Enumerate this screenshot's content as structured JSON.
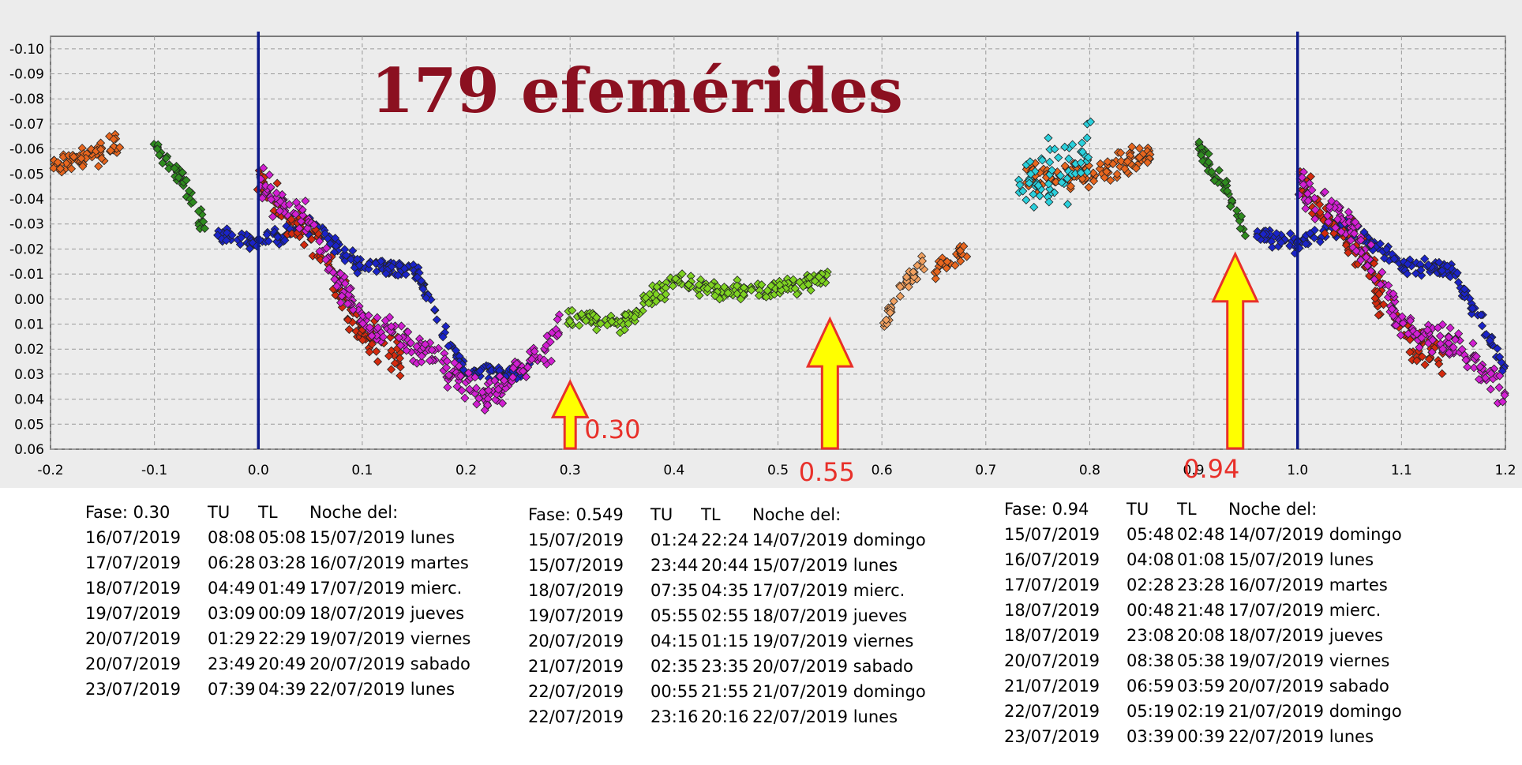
{
  "chart_data": {
    "type": "scatter",
    "title": "179 efemérides",
    "xlabel": "",
    "ylabel": "",
    "xlim": [
      -0.2,
      1.2
    ],
    "ylim": [
      -0.105,
      0.06
    ],
    "y_inverted": true,
    "grid": true,
    "legend": "none",
    "x_ticks": [
      "-0.2",
      "-0.1",
      "0.0",
      "0.1",
      "0.2",
      "0.3",
      "0.4",
      "0.5",
      "0.6",
      "0.7",
      "0.8",
      "0.9",
      "1.0",
      "1.1",
      "1.2"
    ],
    "y_ticks": [
      "-0.10",
      "-0.09",
      "-0.08",
      "-0.07",
      "-0.06",
      "-0.05",
      "-0.04",
      "-0.03",
      "-0.02",
      "-0.01",
      "0.00",
      "0.01",
      "0.02",
      "0.03",
      "0.04",
      "0.05",
      "0.06"
    ],
    "vlines": [
      0.0,
      1.0
    ],
    "colors": {
      "orange": "#e8661e",
      "green": "#2e8b1e",
      "blue": "#1a23c8",
      "red": "#d42a0e",
      "magenta": "#d21fd2",
      "lightgreen": "#7ed321",
      "cyan": "#2ad0dc",
      "peach": "#f0a060",
      "vline": "#0c1a8a",
      "arrow_fill": "#ffff00",
      "arrow_stroke": "#e8302a",
      "annot": "#e8302a",
      "title": "#8b1020"
    },
    "series": [
      {
        "color": "orange",
        "trend": [
          [
            -0.2,
            -0.053
          ],
          [
            -0.17,
            -0.057
          ],
          [
            -0.13,
            -0.063
          ],
          [
            0.74,
            -0.049
          ],
          [
            0.8,
            -0.05
          ],
          [
            0.86,
            -0.058
          ]
        ],
        "spread": 0.007
      },
      {
        "color": "green",
        "trend": [
          [
            -0.1,
            -0.062
          ],
          [
            -0.07,
            -0.046
          ],
          [
            -0.05,
            -0.027
          ],
          [
            0.9,
            -0.062
          ],
          [
            0.93,
            -0.044
          ],
          [
            0.95,
            -0.027
          ]
        ],
        "spread": 0.006
      },
      {
        "color": "blue",
        "trend": [
          [
            -0.04,
            -0.026
          ],
          [
            0.0,
            -0.022
          ],
          [
            0.05,
            -0.03
          ],
          [
            0.1,
            -0.013
          ],
          [
            0.15,
            -0.012
          ],
          [
            0.2,
            0.03
          ],
          [
            0.26,
            0.028
          ],
          [
            0.96,
            -0.026
          ],
          [
            1.0,
            -0.022
          ],
          [
            1.05,
            -0.03
          ],
          [
            1.1,
            -0.013
          ],
          [
            1.15,
            -0.012
          ],
          [
            1.2,
            0.03
          ]
        ],
        "spread": 0.005
      },
      {
        "color": "red",
        "trend": [
          [
            0.0,
            -0.045
          ],
          [
            0.06,
            -0.02
          ],
          [
            0.1,
            0.015
          ],
          [
            0.14,
            0.025
          ],
          [
            1.0,
            -0.045
          ],
          [
            1.06,
            -0.02
          ],
          [
            1.1,
            0.015
          ],
          [
            1.14,
            0.025
          ]
        ],
        "spread": 0.012
      },
      {
        "color": "magenta",
        "trend": [
          [
            0.0,
            -0.045
          ],
          [
            0.05,
            -0.03
          ],
          [
            0.1,
            0.01
          ],
          [
            0.16,
            0.02
          ],
          [
            0.22,
            0.04
          ],
          [
            0.28,
            0.02
          ],
          [
            0.29,
            0.01
          ],
          [
            1.0,
            -0.045
          ],
          [
            1.05,
            -0.03
          ],
          [
            1.1,
            0.01
          ],
          [
            1.16,
            0.02
          ],
          [
            1.2,
            0.04
          ]
        ],
        "spread": 0.01
      },
      {
        "color": "lightgreen",
        "trend": [
          [
            0.3,
            0.007
          ],
          [
            0.35,
            0.01
          ],
          [
            0.4,
            -0.008
          ],
          [
            0.45,
            -0.002
          ],
          [
            0.5,
            -0.004
          ],
          [
            0.55,
            -0.008
          ]
        ],
        "spread": 0.006
      },
      {
        "color": "cyan",
        "trend": [
          [
            0.73,
            -0.045
          ],
          [
            0.78,
            -0.05
          ],
          [
            0.8,
            -0.06
          ]
        ],
        "spread": 0.02
      },
      {
        "color": "peach",
        "trend": [
          [
            0.6,
            0.012
          ],
          [
            0.62,
            -0.005
          ],
          [
            0.64,
            -0.015
          ]
        ],
        "spread": 0.004
      },
      {
        "color": "orange",
        "trend": [
          [
            0.65,
            -0.01
          ],
          [
            0.68,
            -0.02
          ]
        ],
        "spread": 0.006
      }
    ]
  },
  "annotations": [
    {
      "label": "0.30",
      "x": 0.3,
      "y_tip": 0.033
    },
    {
      "label": "0.55",
      "x": 0.55,
      "y_tip": 0.008
    },
    {
      "label": "0.94",
      "x": 0.94,
      "y_tip": -0.018
    }
  ],
  "tables": [
    {
      "headers": [
        "Fase: 0.30",
        "TU",
        "TL",
        "Noche del:"
      ],
      "rows": [
        [
          "16/07/2019",
          "08:08",
          "05:08",
          "15/07/2019 lunes"
        ],
        [
          "17/07/2019",
          "06:28",
          "03:28",
          "16/07/2019 martes"
        ],
        [
          "18/07/2019",
          "04:49",
          "01:49",
          "17/07/2019 mierc."
        ],
        [
          "19/07/2019",
          "03:09",
          "00:09",
          "18/07/2019 jueves"
        ],
        [
          "20/07/2019",
          "01:29",
          "22:29",
          "19/07/2019 viernes"
        ],
        [
          "20/07/2019",
          "23:49",
          "20:49",
          "20/07/2019 sabado"
        ],
        [
          "23/07/2019",
          "07:39",
          "04:39",
          "22/07/2019 lunes"
        ]
      ]
    },
    {
      "headers": [
        "Fase: 0.549",
        "TU",
        "TL",
        "Noche del:"
      ],
      "rows": [
        [
          "15/07/2019",
          "01:24",
          "22:24",
          "14/07/2019 domingo"
        ],
        [
          "15/07/2019",
          "23:44",
          "20:44",
          "15/07/2019 lunes"
        ],
        [
          "18/07/2019",
          "07:35",
          "04:35",
          "17/07/2019 mierc."
        ],
        [
          "19/07/2019",
          "05:55",
          "02:55",
          "18/07/2019 jueves"
        ],
        [
          "20/07/2019",
          "04:15",
          "01:15",
          "19/07/2019 viernes"
        ],
        [
          "21/07/2019",
          "02:35",
          "23:35",
          "20/07/2019 sabado"
        ],
        [
          "22/07/2019",
          "00:55",
          "21:55",
          "21/07/2019 domingo"
        ],
        [
          "22/07/2019",
          "23:16",
          "20:16",
          "22/07/2019 lunes"
        ]
      ]
    },
    {
      "headers": [
        "Fase: 0.94",
        "TU",
        "TL",
        "Noche del:"
      ],
      "rows": [
        [
          "15/07/2019",
          "05:48",
          "02:48",
          "14/07/2019 domingo"
        ],
        [
          "16/07/2019",
          "04:08",
          "01:08",
          "15/07/2019 lunes"
        ],
        [
          "17/07/2019",
          "02:28",
          "23:28",
          "16/07/2019 martes"
        ],
        [
          "18/07/2019",
          "00:48",
          "21:48",
          "17/07/2019 mierc."
        ],
        [
          "18/07/2019",
          "23:08",
          "20:08",
          "18/07/2019 jueves"
        ],
        [
          "20/07/2019",
          "08:38",
          "05:38",
          "19/07/2019 viernes"
        ],
        [
          "21/07/2019",
          "06:59",
          "03:59",
          "20/07/2019 sabado"
        ],
        [
          "22/07/2019",
          "05:19",
          "02:19",
          "21/07/2019 domingo"
        ],
        [
          "23/07/2019",
          "03:39",
          "00:39",
          "22/07/2019 lunes"
        ]
      ]
    }
  ]
}
